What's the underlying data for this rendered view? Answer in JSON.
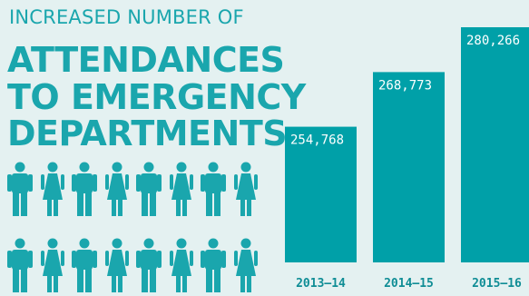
{
  "title": {
    "line1": "INCREASED NUMBER OF",
    "line2": "ATTENDANCES",
    "line3": "TO EMERGENCY",
    "line4": "DEPARTMENTS"
  },
  "icons": [
    "man-icon",
    "woman-icon"
  ],
  "colors": {
    "accent": "#1aa6ad",
    "bar": "#00a0a8",
    "background": "#e4f1f1"
  },
  "chart_data": {
    "type": "bar",
    "categories": [
      "2013–14",
      "2014–15",
      "2015–16"
    ],
    "values": [
      254768,
      268773,
      280266
    ],
    "data_labels": [
      "254,768",
      "268,773",
      "280,266"
    ],
    "title": "",
    "xlabel": "",
    "ylabel": "",
    "grid": false
  }
}
